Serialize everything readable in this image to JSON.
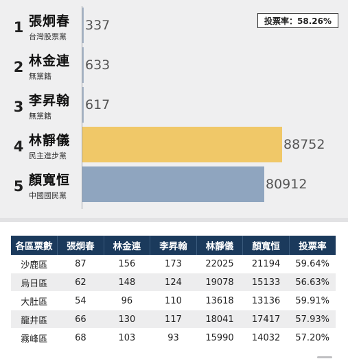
{
  "turnout_badge": "投票率：58.26%",
  "chart_data": {
    "type": "bar",
    "orientation": "horizontal",
    "categories": [
      "張炯春",
      "林金連",
      "李昇翰",
      "林靜儀",
      "顏寬恒"
    ],
    "values": [
      337,
      633,
      617,
      88752,
      80912
    ],
    "xlim": [
      0,
      100000
    ],
    "candidates": [
      {
        "rank": "1",
        "name": "張炯春",
        "party": "台灣股票黨",
        "votes": "337",
        "color": "#a9b6c8"
      },
      {
        "rank": "2",
        "name": "林金連",
        "party": "無黨籍",
        "votes": "633",
        "color": "#a9b6c8"
      },
      {
        "rank": "3",
        "name": "李昇翰",
        "party": "無黨籍",
        "votes": "617",
        "color": "#a9b6c8"
      },
      {
        "rank": "4",
        "name": "林靜儀",
        "party": "民主進步黨",
        "votes": "88752",
        "color": "#f0c868"
      },
      {
        "rank": "5",
        "name": "顏寬恒",
        "party": "中國國民黨",
        "votes": "80912",
        "color": "#8fa5bf"
      }
    ]
  },
  "table": {
    "headers": [
      "各區票數",
      "張炯春",
      "林金連",
      "李昇翰",
      "林靜儀",
      "顏寬恒",
      "投票率"
    ],
    "rows": [
      [
        "沙鹿區",
        "87",
        "156",
        "173",
        "22025",
        "21194",
        "59.64%"
      ],
      [
        "烏日區",
        "62",
        "148",
        "124",
        "19078",
        "15133",
        "56.63%"
      ],
      [
        "大肚區",
        "54",
        "96",
        "110",
        "13618",
        "13136",
        "59.91%"
      ],
      [
        "龍井區",
        "66",
        "130",
        "117",
        "18041",
        "17417",
        "57.93%"
      ],
      [
        "霧峰區",
        "68",
        "103",
        "93",
        "15990",
        "14032",
        "57.20%"
      ]
    ]
  }
}
